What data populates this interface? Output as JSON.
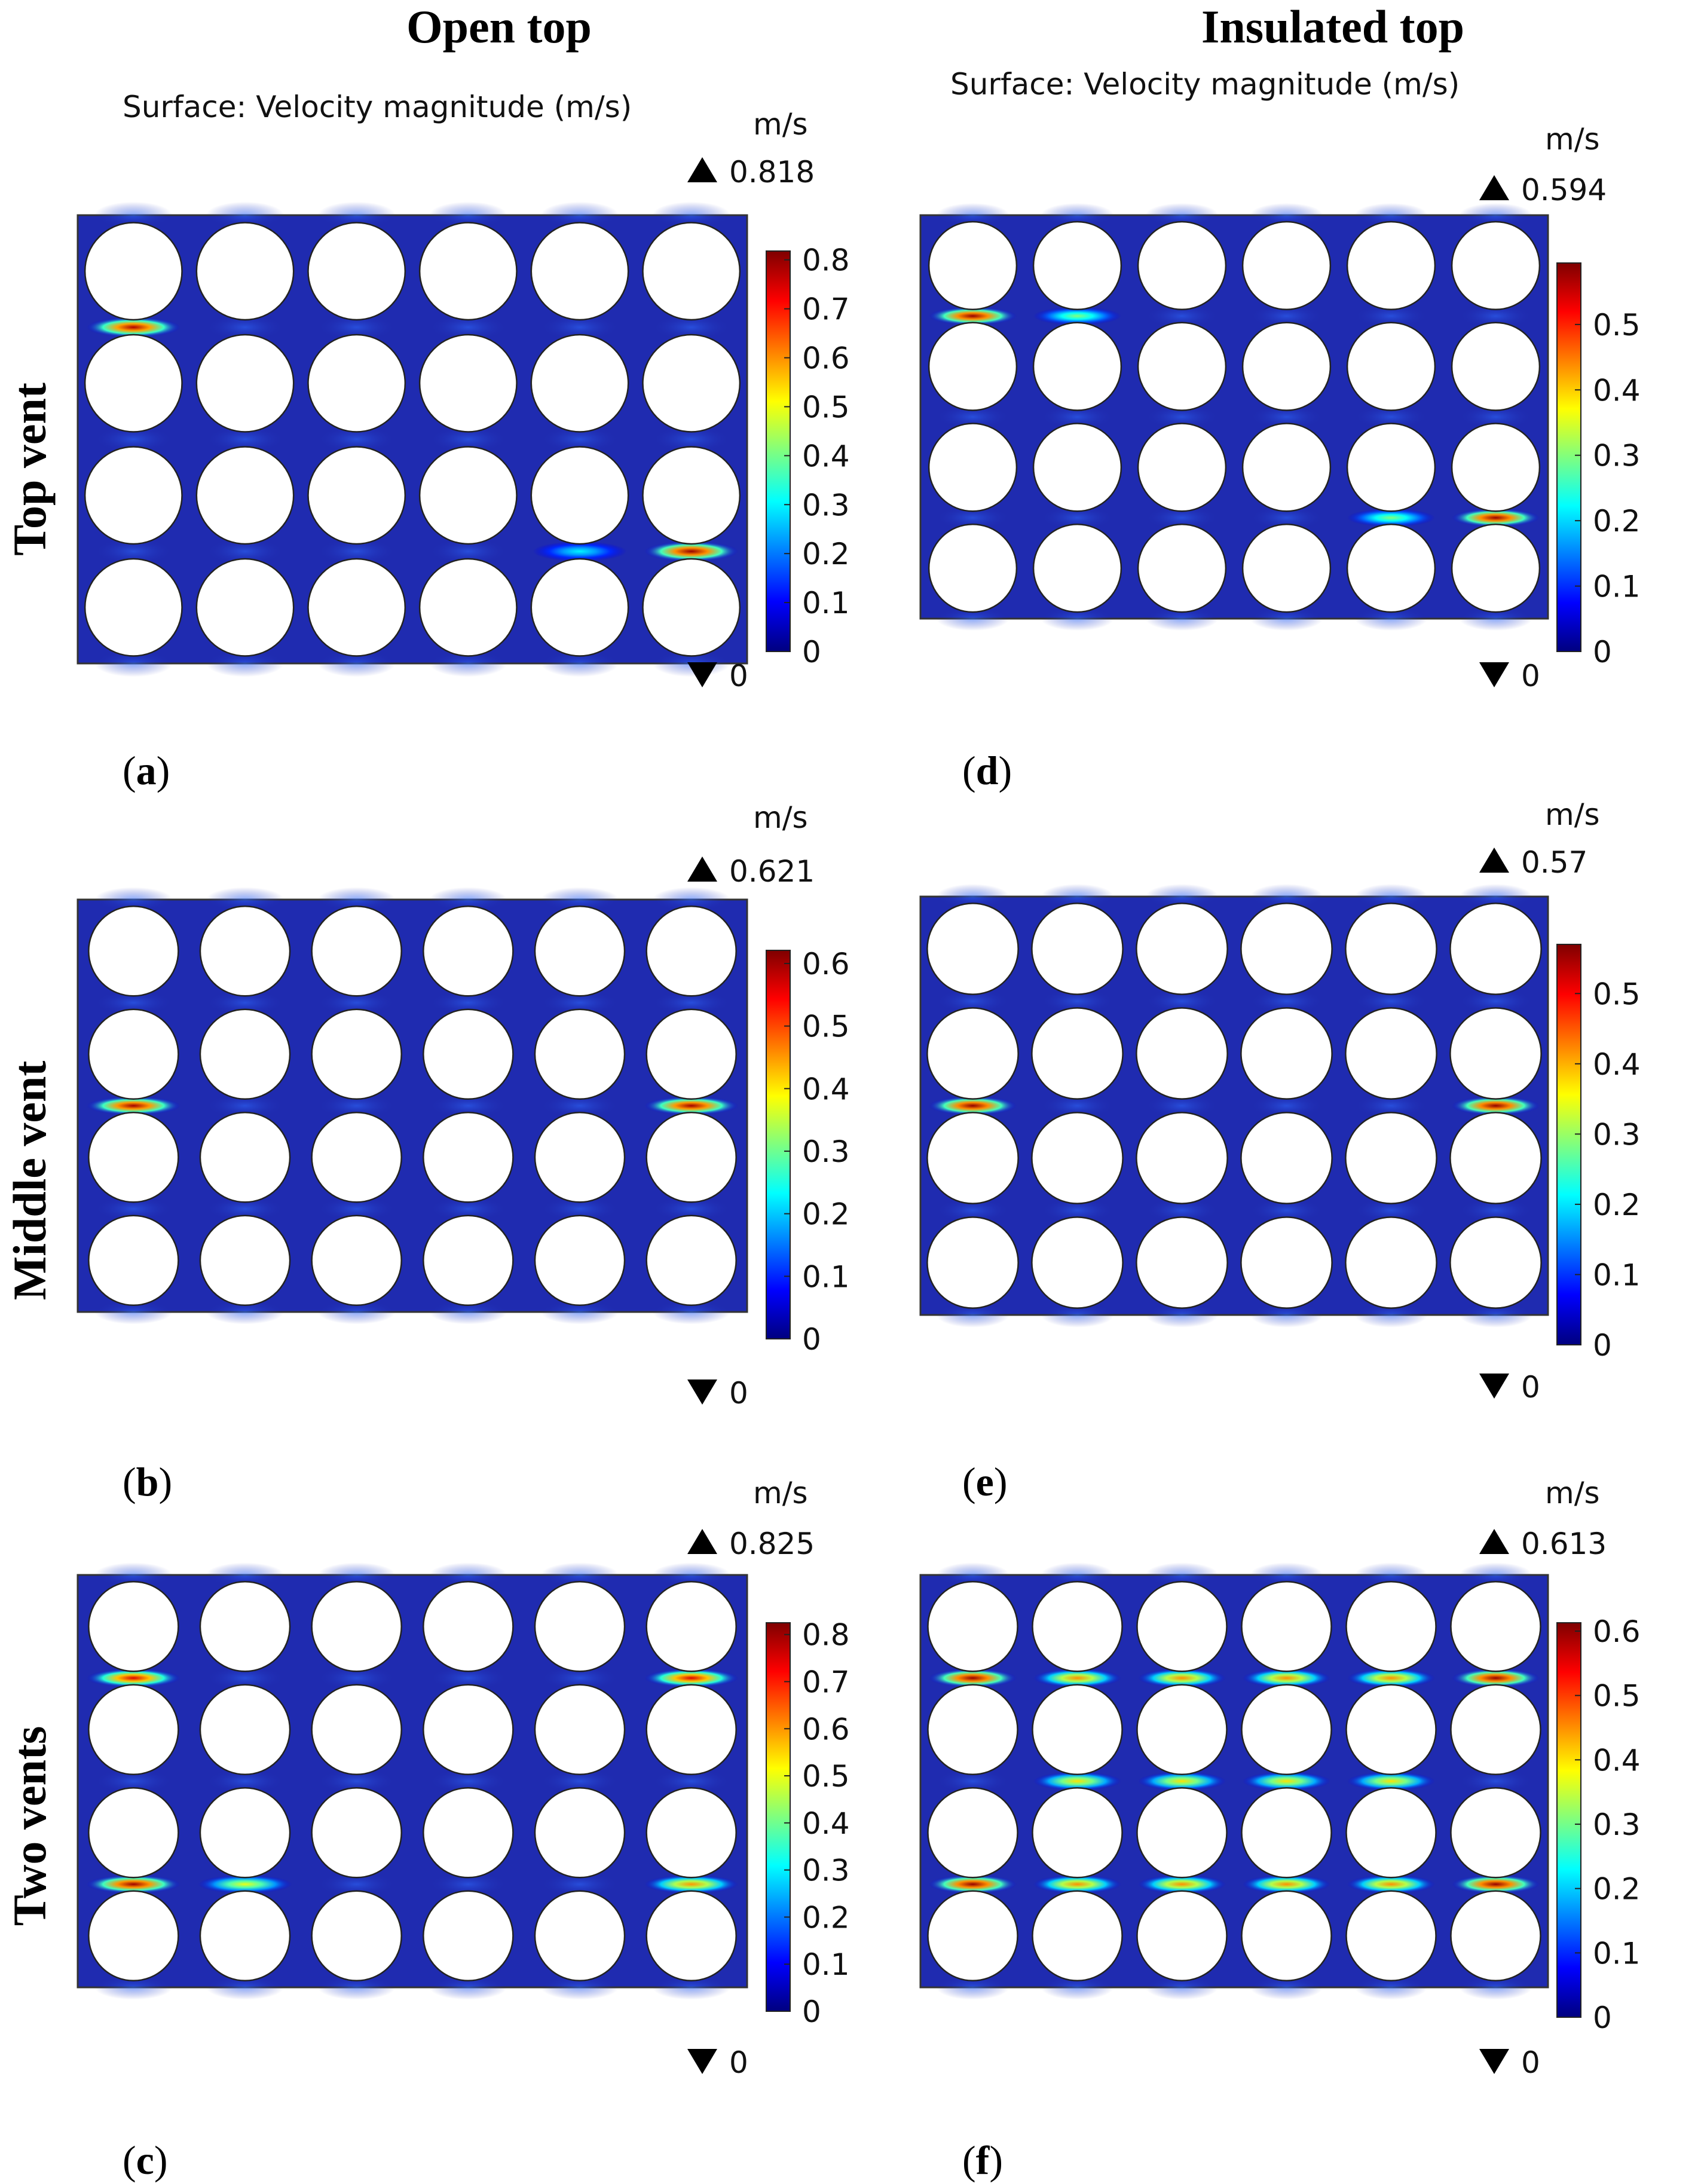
{
  "columns": {
    "open_top": "Open top",
    "insulated_top": "Insulated top"
  },
  "rows": {
    "top_vent": "Top vent",
    "middle_vent": "Middle vent",
    "two_vents": "Two vents"
  },
  "panels": [
    {
      "id": "a",
      "label_letter": "a",
      "subtitle": "Surface: Velocity magnitude (m/s)",
      "unit": "m/s",
      "max_value": "0.818",
      "min_value": "0",
      "ticks": [
        "0.8",
        "0.7",
        "0.6",
        "0.5",
        "0.4",
        "0.3",
        "0.2",
        "0.1",
        "0"
      ],
      "tick_values": [
        0.8,
        0.7,
        0.6,
        0.5,
        0.4,
        0.3,
        0.2,
        0.1,
        0
      ],
      "scale_max": 0.818,
      "cylinder_grid": {
        "rows": 4,
        "cols": 6
      },
      "hotspots": [
        {
          "row_gap": 1,
          "col": 1,
          "value": 0.78
        },
        {
          "row_gap": 3,
          "col": 6,
          "value": 0.8
        },
        {
          "row_gap": 3,
          "col": 5,
          "value": 0.3
        }
      ]
    },
    {
      "id": "b",
      "label_letter": "b",
      "subtitle": "",
      "unit": "m/s",
      "max_value": "0.621",
      "min_value": "0",
      "ticks": [
        "0.6",
        "0.5",
        "0.4",
        "0.3",
        "0.2",
        "0.1",
        "0"
      ],
      "tick_values": [
        0.6,
        0.5,
        0.4,
        0.3,
        0.2,
        0.1,
        0
      ],
      "scale_max": 0.621,
      "cylinder_grid": {
        "rows": 4,
        "cols": 6
      },
      "hotspots": [
        {
          "row_gap": 2,
          "col": 1,
          "value": 0.6
        },
        {
          "row_gap": 2,
          "col": 6,
          "value": 0.6
        }
      ]
    },
    {
      "id": "c",
      "label_letter": "c",
      "subtitle": "",
      "unit": "m/s",
      "max_value": "0.825",
      "min_value": "0",
      "ticks": [
        "0.8",
        "0.7",
        "0.6",
        "0.5",
        "0.4",
        "0.3",
        "0.2",
        "0.1",
        "0"
      ],
      "tick_values": [
        0.8,
        0.7,
        0.6,
        0.5,
        0.4,
        0.3,
        0.2,
        0.1,
        0
      ],
      "scale_max": 0.825,
      "cylinder_grid": {
        "rows": 4,
        "cols": 6
      },
      "hotspots": [
        {
          "row_gap": 1,
          "col": 1,
          "value": 0.75
        },
        {
          "row_gap": 1,
          "col": 6,
          "value": 0.75
        },
        {
          "row_gap": 3,
          "col": 1,
          "value": 0.8
        },
        {
          "row_gap": 3,
          "col": 2,
          "value": 0.5
        },
        {
          "row_gap": 3,
          "col": 6,
          "value": 0.6
        }
      ]
    },
    {
      "id": "d",
      "label_letter": "d",
      "subtitle": "Surface: Velocity magnitude (m/s)",
      "unit": "m/s",
      "max_value": "0.594",
      "min_value": "0",
      "ticks": [
        "0.5",
        "0.4",
        "0.3",
        "0.2",
        "0.1",
        "0"
      ],
      "tick_values": [
        0.5,
        0.4,
        0.3,
        0.2,
        0.1,
        0
      ],
      "scale_max": 0.594,
      "cylinder_grid": {
        "rows": 4,
        "cols": 6
      },
      "hotspots": [
        {
          "row_gap": 1,
          "col": 1,
          "value": 0.58
        },
        {
          "row_gap": 1,
          "col": 2,
          "value": 0.3
        },
        {
          "row_gap": 3,
          "col": 6,
          "value": 0.58
        },
        {
          "row_gap": 3,
          "col": 5,
          "value": 0.3
        }
      ]
    },
    {
      "id": "e",
      "label_letter": "e",
      "subtitle": "",
      "unit": "m/s",
      "max_value": "0.57",
      "min_value": "0",
      "ticks": [
        "0.5",
        "0.4",
        "0.3",
        "0.2",
        "0.1",
        "0"
      ],
      "tick_values": [
        0.5,
        0.4,
        0.3,
        0.2,
        0.1,
        0
      ],
      "scale_max": 0.57,
      "cylinder_grid": {
        "rows": 4,
        "cols": 6
      },
      "hotspots": [
        {
          "row_gap": 2,
          "col": 1,
          "value": 0.56
        },
        {
          "row_gap": 2,
          "col": 6,
          "value": 0.56
        }
      ]
    },
    {
      "id": "f",
      "label_letter": "f",
      "subtitle": "",
      "unit": "m/s",
      "max_value": "0.613",
      "min_value": "0",
      "ticks": [
        "0.6",
        "0.5",
        "0.4",
        "0.3",
        "0.2",
        "0.1",
        "0"
      ],
      "tick_values": [
        0.6,
        0.5,
        0.4,
        0.3,
        0.2,
        0.1,
        0
      ],
      "scale_max": 0.613,
      "cylinder_grid": {
        "rows": 4,
        "cols": 6
      },
      "hotspots": [
        {
          "row_gap": 1,
          "col": 1,
          "value": 0.6
        },
        {
          "row_gap": 1,
          "col": 2,
          "value": 0.45
        },
        {
          "row_gap": 1,
          "col": 3,
          "value": 0.45
        },
        {
          "row_gap": 1,
          "col": 4,
          "value": 0.45
        },
        {
          "row_gap": 1,
          "col": 5,
          "value": 0.45
        },
        {
          "row_gap": 1,
          "col": 6,
          "value": 0.6
        },
        {
          "row_gap": 2,
          "col": 2,
          "value": 0.4
        },
        {
          "row_gap": 2,
          "col": 3,
          "value": 0.4
        },
        {
          "row_gap": 2,
          "col": 4,
          "value": 0.4
        },
        {
          "row_gap": 2,
          "col": 5,
          "value": 0.4
        },
        {
          "row_gap": 3,
          "col": 1,
          "value": 0.6
        },
        {
          "row_gap": 3,
          "col": 2,
          "value": 0.45
        },
        {
          "row_gap": 3,
          "col": 3,
          "value": 0.45
        },
        {
          "row_gap": 3,
          "col": 4,
          "value": 0.45
        },
        {
          "row_gap": 3,
          "col": 5,
          "value": 0.45
        },
        {
          "row_gap": 3,
          "col": 6,
          "value": 0.6
        }
      ]
    }
  ]
}
